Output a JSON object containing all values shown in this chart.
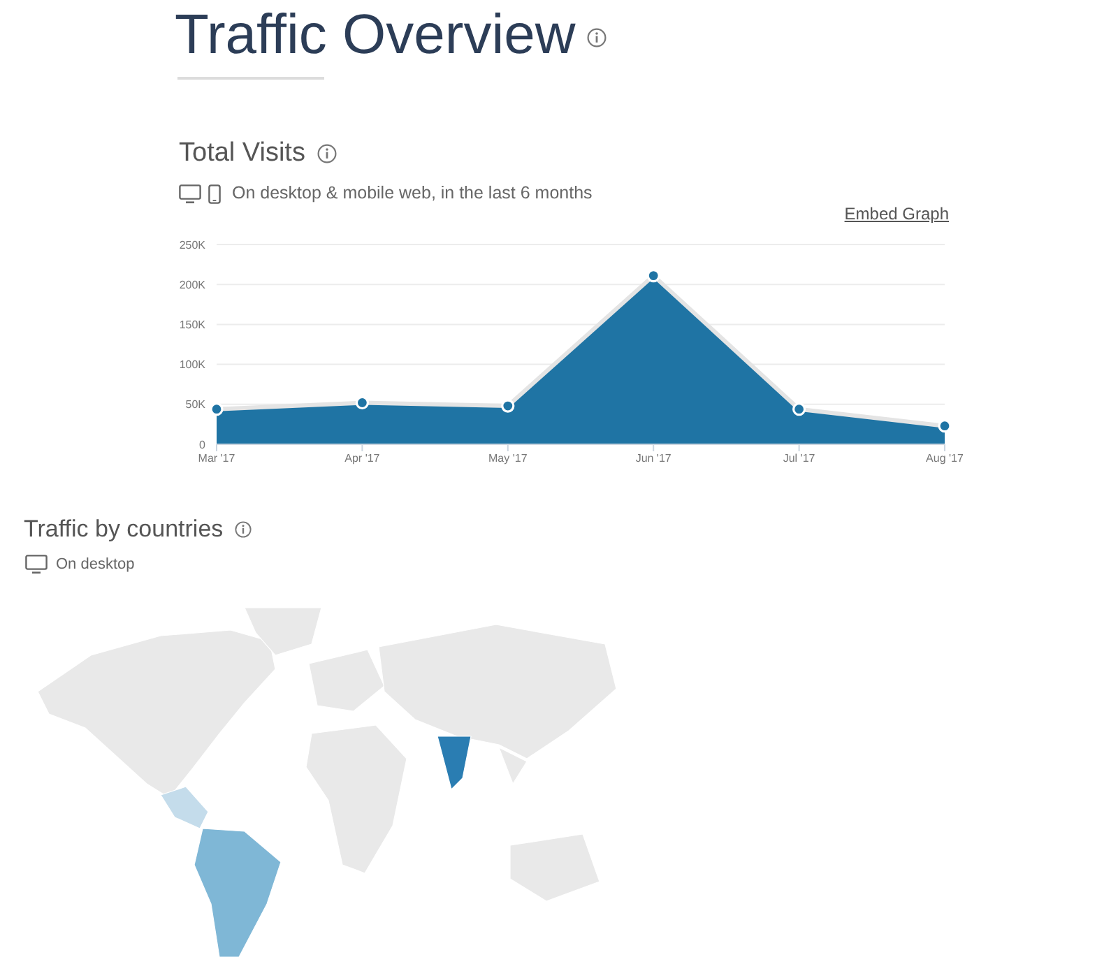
{
  "chart_data": [
    {
      "type": "area",
      "title": "Total Visits",
      "subtitle": "On desktop & mobile web, in the last 6 months",
      "annotations": [
        "Traffic Overview",
        "Embed Graph"
      ],
      "categories": [
        "Mar '17",
        "Apr '17",
        "May '17",
        "Jun '17",
        "Jul '17",
        "Aug '17"
      ],
      "values": [
        44000,
        52000,
        48000,
        211000,
        44000,
        23000
      ],
      "color": "#1f74a4",
      "ylim": [
        0,
        250000
      ],
      "yticks": [
        0,
        {
          "value": 50000,
          "label": "50K"
        },
        {
          "value": 100000,
          "label": "100K"
        },
        {
          "value": 150000,
          "label": "150K"
        },
        {
          "value": 200000,
          "label": "200K"
        },
        {
          "value": 250000,
          "label": "250K"
        }
      ],
      "grid": "y",
      "marker": "circle"
    },
    {
      "type": "other",
      "title": "Traffic by countries",
      "subtitle": "On desktop"
    }
  ]
}
